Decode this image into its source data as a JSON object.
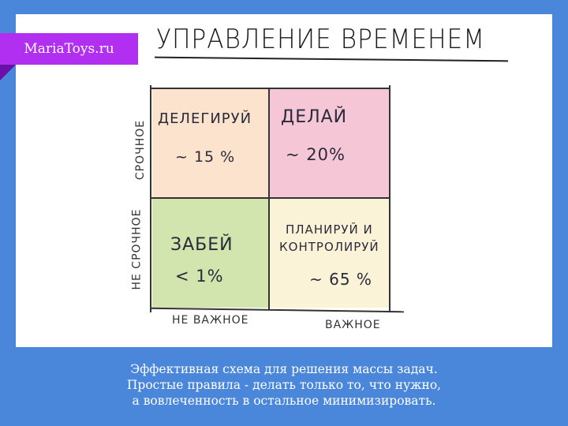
{
  "brand": {
    "label": "MariaToys.ru",
    "color": "#b02ff0"
  },
  "title": "УПРАВЛЕНИЕ ВРЕМЕНЕМ",
  "matrix": {
    "quadrants": [
      {
        "label": "ДЕЛЕГИРУЙ",
        "value": "~ 15 %",
        "color": "#fbe3cd"
      },
      {
        "label": "ДЕЛАЙ",
        "value": "~ 20%",
        "color": "#f5c7d6"
      },
      {
        "label": "ЗАБЕЙ",
        "value": "< 1%",
        "color": "#d3e5ae"
      },
      {
        "label_line1": "ПЛАНИРУЙ И",
        "label_line2": "КОНТРОЛИРУЙ",
        "value": "~ 65 %",
        "color": "#fbf3d8"
      }
    ],
    "y_axis": {
      "top": "СРОЧНОЕ",
      "bottom": "НЕ СРОЧНОЕ"
    },
    "x_axis": {
      "left": "НЕ ВАЖНОЕ",
      "right": "ВАЖНОЕ"
    }
  },
  "caption": {
    "line1": "Эффективная схема для решения массы задач.",
    "line2": "Простые правила - делать только то, что нужно,",
    "line3": "а вовлеченность в остальное минимизировать."
  }
}
